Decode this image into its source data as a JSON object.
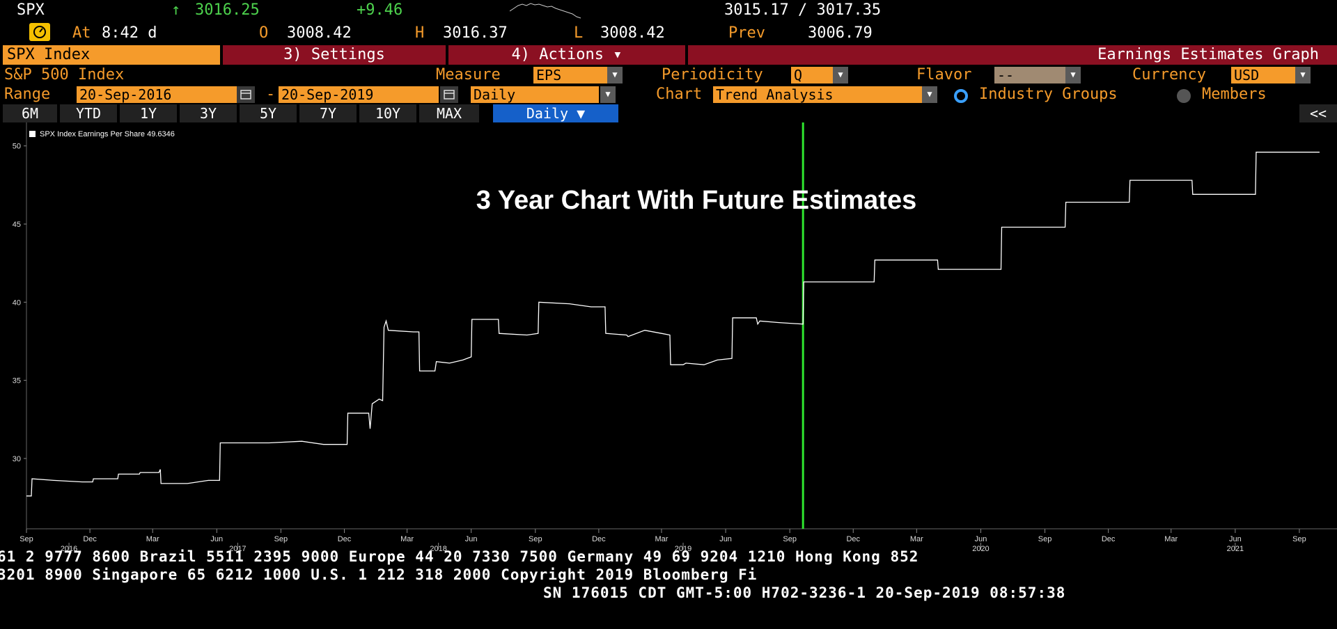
{
  "quote": {
    "symbol": "SPX",
    "arrow": "↑",
    "last": "3016.25",
    "change": "+9.46",
    "bid_ask": "3015.17 / 3017.35",
    "at_label": "At",
    "at_time": "8:42 d",
    "open_label": "O",
    "open": "3008.42",
    "high_label": "H",
    "high": "3016.37",
    "low_label": "L",
    "low": "3008.42",
    "prev_label": "Prev",
    "prev": "3006.79"
  },
  "menubar": {
    "security": "SPX Index",
    "settings": "3) Settings",
    "actions": "4) Actions ▾",
    "function_title": "Earnings Estimates Graph"
  },
  "params": {
    "name": "S&P 500 Index",
    "measure_label": "Measure",
    "measure_value": "EPS",
    "periodicity_label": "Periodicity",
    "periodicity_value": "Q",
    "flavor_label": "Flavor",
    "flavor_value": "--",
    "currency_label": "Currency",
    "currency_value": "USD",
    "range_label": "Range",
    "range_start": "20-Sep-2016",
    "range_sep": "-",
    "range_end": "20-Sep-2019",
    "frequency_value": "Daily",
    "chart_label": "Chart",
    "chart_value": "Trend Analysis",
    "industry_groups": "Industry Groups",
    "members": "Members"
  },
  "tabs": [
    "6M",
    "YTD",
    "1Y",
    "3Y",
    "5Y",
    "7Y",
    "10Y",
    "MAX"
  ],
  "daily_button": "Daily ▼",
  "collapse_button": "<<",
  "footer": {
    "line1": "61 2 9777 8600 Brazil 5511 2395 9000 Europe 44 20 7330 7500 Germany 49 69 9204 1210 Hong Kong 852",
    "line2": " 3201 8900       Singapore 65 6212 1000        U.S. 1 212 318 2000        Copyright 2019 Bloomberg Fi",
    "line3": "SN 176015 CDT  GMT-5:00 H702-3236-1 20-Sep-2019 08:57:38"
  },
  "colors": {
    "amber": "#f59b2b",
    "menubar_red": "#8b1022",
    "daily_blue": "#1560c9",
    "today_line": "#2ee62e",
    "series": "#ffffff"
  },
  "chart_data": {
    "type": "line",
    "annotation": "3 Year Chart With Future Estimates",
    "legend": "SPX Index Earnings Per Share 49.6346",
    "yticks": [
      30,
      35,
      40,
      45,
      50
    ],
    "ylim": [
      25.5,
      51.5
    ],
    "xlim": [
      "2016-09-01",
      "2021-10-25"
    ],
    "today_marker": "2019-09-20",
    "month_ticks": [
      {
        "label": "Sep",
        "x": "2016-09-01"
      },
      {
        "label": "Dec",
        "x": "2016-12-01"
      },
      {
        "label": "Mar",
        "x": "2017-03-01"
      },
      {
        "label": "Jun",
        "x": "2017-06-01"
      },
      {
        "label": "Sep",
        "x": "2017-09-01"
      },
      {
        "label": "Dec",
        "x": "2017-12-01"
      },
      {
        "label": "Mar",
        "x": "2018-03-01"
      },
      {
        "label": "Jun",
        "x": "2018-06-01"
      },
      {
        "label": "Sep",
        "x": "2018-09-01"
      },
      {
        "label": "Dec",
        "x": "2018-12-01"
      },
      {
        "label": "Mar",
        "x": "2019-03-01"
      },
      {
        "label": "Jun",
        "x": "2019-06-01"
      },
      {
        "label": "Sep",
        "x": "2019-09-01"
      },
      {
        "label": "Dec",
        "x": "2019-12-01"
      },
      {
        "label": "Mar",
        "x": "2020-03-01"
      },
      {
        "label": "Jun",
        "x": "2020-06-01"
      },
      {
        "label": "Sep",
        "x": "2020-09-01"
      },
      {
        "label": "Dec",
        "x": "2020-12-01"
      },
      {
        "label": "Mar",
        "x": "2021-03-01"
      },
      {
        "label": "Jun",
        "x": "2021-06-01"
      },
      {
        "label": "Sep",
        "x": "2021-09-01"
      }
    ],
    "year_ticks": [
      {
        "label": "2016",
        "x": "2016-11-01"
      },
      {
        "label": "2017",
        "x": "2017-07-01"
      },
      {
        "label": "2018",
        "x": "2018-04-15"
      },
      {
        "label": "2019",
        "x": "2019-04-01"
      },
      {
        "label": "2020",
        "x": "2020-06-01"
      },
      {
        "label": "2021",
        "x": "2021-06-01"
      }
    ],
    "series": [
      {
        "points": [
          [
            "2016-09-01",
            27.6
          ],
          [
            "2016-09-08",
            27.6
          ],
          [
            "2016-09-09",
            28.7
          ],
          [
            "2016-10-10",
            28.6
          ],
          [
            "2016-11-20",
            28.5
          ],
          [
            "2016-12-05",
            28.5
          ],
          [
            "2016-12-06",
            28.7
          ],
          [
            "2017-01-10",
            28.7
          ],
          [
            "2017-01-11",
            29.0
          ],
          [
            "2017-02-10",
            29.0
          ],
          [
            "2017-02-11",
            29.1
          ],
          [
            "2017-03-10",
            29.1
          ],
          [
            "2017-03-12",
            29.3
          ],
          [
            "2017-03-13",
            28.4
          ],
          [
            "2017-04-20",
            28.4
          ],
          [
            "2017-05-20",
            28.6
          ],
          [
            "2017-06-05",
            28.6
          ],
          [
            "2017-06-06",
            31.0
          ],
          [
            "2017-08-15",
            31.0
          ],
          [
            "2017-10-01",
            31.1
          ],
          [
            "2017-11-01",
            30.9
          ],
          [
            "2017-12-05",
            30.9
          ],
          [
            "2017-12-06",
            32.9
          ],
          [
            "2018-01-05",
            32.9
          ],
          [
            "2018-01-07",
            31.9
          ],
          [
            "2018-01-10",
            33.5
          ],
          [
            "2018-01-20",
            33.8
          ],
          [
            "2018-01-25",
            33.7
          ],
          [
            "2018-01-27",
            38.4
          ],
          [
            "2018-01-30",
            38.8
          ],
          [
            "2018-02-02",
            38.2
          ],
          [
            "2018-03-10",
            38.1
          ],
          [
            "2018-03-18",
            38.1
          ],
          [
            "2018-03-19",
            35.6
          ],
          [
            "2018-04-10",
            35.6
          ],
          [
            "2018-04-12",
            36.2
          ],
          [
            "2018-05-01",
            36.1
          ],
          [
            "2018-05-20",
            36.3
          ],
          [
            "2018-06-01",
            36.5
          ],
          [
            "2018-06-02",
            38.9
          ],
          [
            "2018-07-10",
            38.9
          ],
          [
            "2018-07-11",
            38.0
          ],
          [
            "2018-08-20",
            37.9
          ],
          [
            "2018-09-05",
            38.0
          ],
          [
            "2018-09-06",
            40.0
          ],
          [
            "2018-10-20",
            39.9
          ],
          [
            "2018-11-20",
            39.7
          ],
          [
            "2018-12-10",
            39.7
          ],
          [
            "2018-12-11",
            38.0
          ],
          [
            "2019-01-10",
            37.9
          ],
          [
            "2019-01-12",
            37.8
          ],
          [
            "2019-02-05",
            38.2
          ],
          [
            "2019-03-01",
            38.0
          ],
          [
            "2019-03-13",
            37.9
          ],
          [
            "2019-03-14",
            36.0
          ],
          [
            "2019-04-01",
            36.0
          ],
          [
            "2019-04-05",
            36.1
          ],
          [
            "2019-05-01",
            36.0
          ],
          [
            "2019-05-20",
            36.3
          ],
          [
            "2019-06-10",
            36.4
          ],
          [
            "2019-06-11",
            39.0
          ],
          [
            "2019-07-15",
            39.0
          ],
          [
            "2019-07-17",
            38.6
          ],
          [
            "2019-07-20",
            38.8
          ],
          [
            "2019-08-15",
            38.7
          ],
          [
            "2019-09-20",
            38.6
          ],
          [
            "2019-09-21",
            41.3
          ],
          [
            "2019-12-31",
            41.3
          ],
          [
            "2020-01-01",
            42.7
          ],
          [
            "2020-03-31",
            42.7
          ],
          [
            "2020-04-01",
            42.1
          ],
          [
            "2020-06-30",
            42.1
          ],
          [
            "2020-07-01",
            44.8
          ],
          [
            "2020-09-30",
            44.8
          ],
          [
            "2020-10-01",
            46.4
          ],
          [
            "2020-12-31",
            46.4
          ],
          [
            "2021-01-01",
            47.8
          ],
          [
            "2021-03-31",
            47.8
          ],
          [
            "2021-04-01",
            46.9
          ],
          [
            "2021-06-30",
            46.9
          ],
          [
            "2021-07-01",
            49.6
          ],
          [
            "2021-09-30",
            49.6
          ]
        ]
      }
    ]
  }
}
